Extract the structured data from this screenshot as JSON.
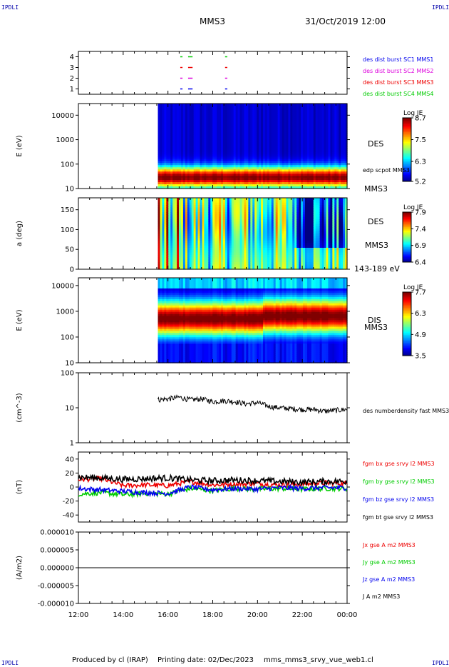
{
  "header": {
    "corner_tl": "IPDLI",
    "corner_tr": "IPDLI",
    "corner_bl": "IPDLI",
    "corner_br": "IPDLI",
    "spacecraft": "MMS3",
    "date": "31/Oct/2019 12:00"
  },
  "footer": {
    "produced_by": "Produced by cl (IRAP)",
    "printing_date": "Printing date: 02/Dec/2023",
    "filename": "mms_mms3_srvy_vue_web1.cl"
  },
  "colors": {
    "blue": "#0000ee",
    "magenta": "#dd00dd",
    "red": "#ee0000",
    "green": "#00cc00",
    "black": "#000000"
  },
  "chart_data": [
    {
      "type": "scatter",
      "panel": "burst-availability",
      "yticks": [
        "1",
        "2",
        "3",
        "4"
      ],
      "ylim": [
        0.5,
        4.5
      ],
      "series": [
        {
          "name": "des dist burst SC1 MMS1",
          "color": "#0000ee",
          "level": 1,
          "segments": [
            [
              16.55,
              16.65
            ],
            [
              16.9,
              17.1
            ],
            [
              18.55,
              18.65
            ]
          ]
        },
        {
          "name": "des dist burst SC2 MMS2",
          "color": "#dd00dd",
          "level": 2,
          "segments": [
            [
              16.55,
              16.65
            ],
            [
              16.9,
              17.1
            ],
            [
              18.55,
              18.65
            ]
          ]
        },
        {
          "name": "des dist burst SC3 MMS3",
          "color": "#ee0000",
          "level": 3,
          "segments": [
            [
              16.55,
              16.65
            ],
            [
              16.9,
              17.1
            ],
            [
              18.55,
              18.65
            ]
          ]
        },
        {
          "name": "des dist burst SC4 MMS4",
          "color": "#00cc00",
          "level": 4,
          "segments": [
            [
              16.55,
              16.65
            ],
            [
              16.9,
              17.1
            ],
            [
              18.55,
              18.65
            ]
          ]
        }
      ]
    },
    {
      "type": "heatmap",
      "panel": "des-energy",
      "ylabel": "E (eV)",
      "yscale": "log",
      "ylim": [
        10,
        30000
      ],
      "yticks": [
        "10",
        "100",
        "1000",
        "10000"
      ],
      "data_start_hour": 15.55,
      "right_labels": [
        "DES",
        "edp scpot MMS3",
        "MMS3"
      ],
      "colorbar": {
        "title": "Log JE",
        "min": 5.2,
        "max": 8.7,
        "ticks": [
          "8.7",
          "7.5",
          "6.3",
          "5.2"
        ]
      }
    },
    {
      "type": "heatmap",
      "panel": "des-pitch-angle",
      "ylabel": "a (deg)",
      "ylim": [
        0,
        180
      ],
      "yticks": [
        "0",
        "50",
        "100",
        "150"
      ],
      "data_start_hour": 15.55,
      "right_labels": [
        "DES",
        "MMS3",
        "143-189 eV"
      ],
      "colorbar": {
        "title": "Log JE",
        "min": 6.4,
        "max": 7.9,
        "ticks": [
          "7.9",
          "7.4",
          "6.9",
          "6.4"
        ]
      }
    },
    {
      "type": "heatmap",
      "panel": "dis-energy",
      "ylabel": "E (eV)",
      "yscale": "log",
      "ylim": [
        10,
        20000
      ],
      "yticks": [
        "10",
        "100",
        "1000",
        "10000"
      ],
      "data_start_hour": 15.55,
      "right_labels": [
        "DIS",
        "MMS3"
      ],
      "colorbar": {
        "title": "Log JE",
        "min": 3.5,
        "max": 7.7,
        "ticks": [
          "7.7",
          "6.3",
          "4.9",
          "3.5"
        ]
      }
    },
    {
      "type": "line",
      "panel": "density",
      "ylabel": "(cm^-3)",
      "yscale": "log",
      "ylim": [
        1,
        100
      ],
      "yticks": [
        "1",
        "10",
        "100"
      ],
      "series": [
        {
          "name": "des numberdensity fast MMS3",
          "color": "#000000",
          "x": [
            15.55,
            16.0,
            16.5,
            17.0,
            17.5,
            18.0,
            18.5,
            19.0,
            19.5,
            20.0,
            20.5,
            21.0,
            21.5,
            22.0,
            22.5,
            23.0,
            23.5,
            24.0
          ],
          "y": [
            17,
            18,
            20,
            17,
            18,
            15,
            16,
            15,
            13,
            14,
            11,
            10,
            9.5,
            9,
            9,
            8,
            8.5,
            9
          ]
        }
      ]
    },
    {
      "type": "line",
      "panel": "magnetic-field",
      "ylabel": "(nT)",
      "ylim": [
        -50,
        50
      ],
      "yticks": [
        "-40",
        "-20",
        "0",
        "20",
        "40"
      ],
      "series": [
        {
          "name": "fgm bx gse srvy l2 MMS3",
          "color": "#ee0000",
          "x": [
            12,
            13,
            14,
            15,
            16,
            17,
            18,
            19,
            20,
            21,
            22,
            23,
            24
          ],
          "y": [
            11,
            12,
            2,
            3,
            2,
            8,
            3,
            4,
            5,
            3,
            4,
            6,
            5
          ]
        },
        {
          "name": "fgm by gse srvy l2 MMS3",
          "color": "#00cc00",
          "x": [
            12,
            13,
            14,
            15,
            16,
            17,
            18,
            19,
            20,
            21,
            22,
            23,
            24
          ],
          "y": [
            -10,
            -8,
            -11,
            -9,
            -10,
            -2,
            -5,
            -2,
            -3,
            -2,
            -3,
            -2,
            -2
          ]
        },
        {
          "name": "fgm bz gse srvy l2 MMS3",
          "color": "#0000ee",
          "x": [
            12,
            13,
            14,
            15,
            16,
            17,
            18,
            19,
            20,
            21,
            22,
            23,
            24
          ],
          "y": [
            -2,
            -4,
            -6,
            -8,
            -9,
            0,
            -4,
            -2,
            -3,
            -1,
            -2,
            -1,
            -1
          ]
        },
        {
          "name": "fgm bt gse srvy l2 MMS3",
          "color": "#000000",
          "x": [
            12,
            13,
            14,
            15,
            16,
            17,
            18,
            19,
            20,
            21,
            22,
            23,
            24
          ],
          "y": [
            14,
            13,
            11,
            12,
            13,
            10,
            9,
            10,
            9,
            8,
            7,
            8,
            8
          ]
        }
      ]
    },
    {
      "type": "line",
      "panel": "current-density",
      "ylabel": "(A/m2)",
      "ylim": [
        -1e-05,
        1e-05
      ],
      "yticks": [
        "-0.000010",
        "-0.000005",
        "0.000000",
        "0.000005",
        "0.000010"
      ],
      "series": [
        {
          "name": "Jx gse A m2 MMS3",
          "color": "#ee0000",
          "x": [
            12,
            24
          ],
          "y": [
            0,
            0
          ]
        },
        {
          "name": "Jy gse A m2 MMS3",
          "color": "#00cc00",
          "x": [
            12,
            24
          ],
          "y": [
            0,
            0
          ]
        },
        {
          "name": "Jz gse A m2 MMS3",
          "color": "#0000ee",
          "x": [
            12,
            24
          ],
          "y": [
            0,
            0
          ]
        },
        {
          "name": "J A m2 MMS3",
          "color": "#000000",
          "x": [
            12,
            24
          ],
          "y": [
            0,
            0
          ]
        }
      ]
    }
  ],
  "xaxis": {
    "ticks": [
      "12:00",
      "14:00",
      "16:00",
      "18:00",
      "20:00",
      "22:00",
      "00:00"
    ],
    "xlim": [
      12,
      24
    ]
  }
}
